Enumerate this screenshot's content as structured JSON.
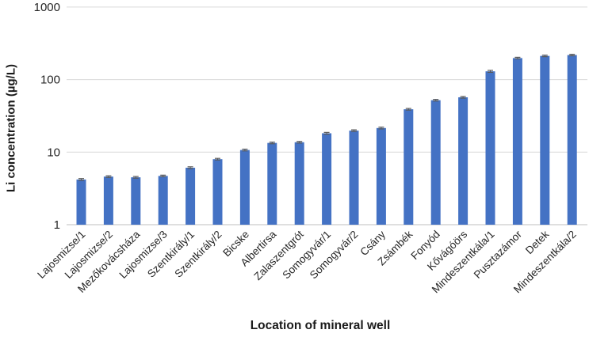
{
  "chart_data": {
    "type": "bar",
    "title": "",
    "xlabel": "Location of mineral well",
    "ylabel": "Li concentration (µg/L)",
    "y_scale": "log",
    "ylim": [
      1,
      1000
    ],
    "y_ticks": [
      1,
      10,
      100,
      1000
    ],
    "grid": true,
    "legend_position": "none",
    "categories": [
      "Lajosmizse/1",
      "Lajosmizse/2",
      "Mezőkovácsháza",
      "Lajosmizse/3",
      "Szentkirály/1",
      "Szentkirály/2",
      "Bicske",
      "Albertirsa",
      "Zalaszentgrót",
      "Somogyvár/1",
      "Somogyvár/2",
      "Csány",
      "Zsámbék",
      "Fonyód",
      "Kővágóörs",
      "Mindeszentkála/1",
      "Pusztazámor",
      "Detek",
      "Mindeszentkála/2"
    ],
    "values": [
      4.2,
      4.6,
      4.5,
      4.7,
      6.1,
      8.0,
      10.7,
      13.4,
      13.7,
      18.2,
      19.8,
      21.5,
      39,
      52,
      57,
      130,
      198,
      212,
      218
    ],
    "errors": [
      0.12,
      0.12,
      0.12,
      0.12,
      0.18,
      0.2,
      0.3,
      0.35,
      0.35,
      0.5,
      0.5,
      0.6,
      1.0,
      1.3,
      1.5,
      4.0,
      5.0,
      5.0,
      5.0
    ],
    "colors": {
      "bar": "#4472C4",
      "error_bar": "#595959",
      "gridline": "#D9D9D9",
      "axis_line": "#BFBFBF",
      "tick_text": "#262626",
      "title_text": "#1a1a1a",
      "background": "#FFFFFF"
    }
  }
}
